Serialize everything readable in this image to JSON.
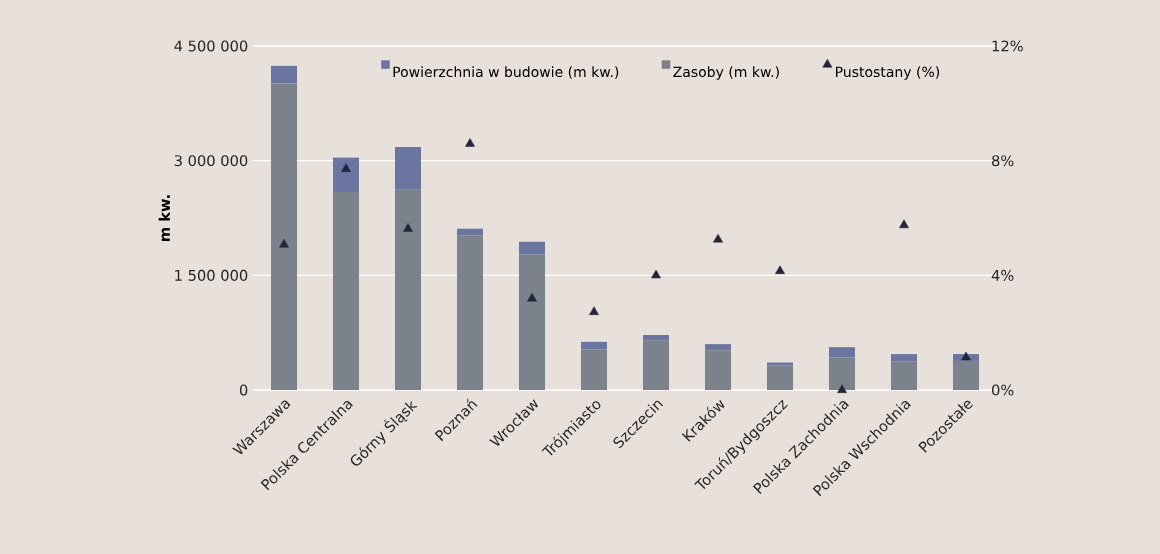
{
  "chart_data": {
    "type": "bar",
    "stacked": true,
    "categories": [
      "Warszawa",
      "Polska Centralna",
      "Górny Śląsk",
      "Poznań",
      "Wrocław",
      "Trójmiasto",
      "Szczecin",
      "Kraków",
      "Toruń/Bydgoszcz",
      "Polska Zachodnia",
      "Polska Wschodnia",
      "Pozostałe"
    ],
    "ylabel": "m kw.",
    "series": [
      {
        "name": "Zasoby (m kw.)",
        "color": "#7b828c",
        "values": [
          4010000,
          2590000,
          2620000,
          2020000,
          1770000,
          530000,
          650000,
          520000,
          320000,
          430000,
          370000,
          380000
        ]
      },
      {
        "name": "Powierzchnia w budowie (m kw.)",
        "color": "#6a76a0",
        "values": [
          230000,
          450000,
          560000,
          90000,
          170000,
          100000,
          70000,
          80000,
          40000,
          130000,
          100000,
          90000
        ]
      },
      {
        "name": "Pustostany (%)",
        "type": "scatter",
        "axis": "y2",
        "marker": "triangle",
        "color": "#23253a",
        "values": [
          5.07,
          7.71,
          5.62,
          8.59,
          3.19,
          2.72,
          4.0,
          5.25,
          4.15,
          0,
          5.75,
          1.14
        ]
      }
    ],
    "ylim": [
      0,
      4500000
    ],
    "yticks": [
      0,
      {
        "value": 1500000,
        "label": "1 500 000"
      },
      {
        "value": 3000000,
        "label": "3 000 000"
      },
      {
        "value": 4500000,
        "label": "4 500 000"
      }
    ],
    "y2lim": [
      0,
      12
    ],
    "y2ticks": [
      {
        "value": 0,
        "label": "0%"
      },
      {
        "value": 4,
        "label": "4%"
      },
      {
        "value": 8,
        "label": "8%"
      },
      {
        "value": 12,
        "label": "12%"
      }
    ],
    "grid": "y",
    "legend": "top"
  }
}
